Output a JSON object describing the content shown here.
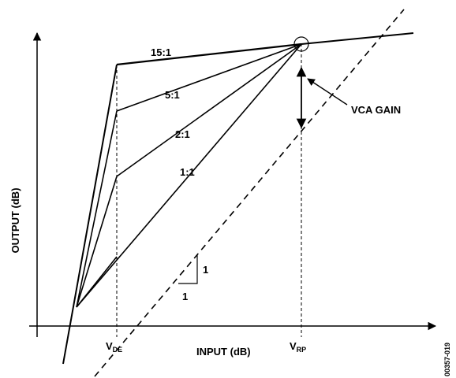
{
  "axes": {
    "x_label": "INPUT (dB)",
    "y_label": "OUTPUT (dB)"
  },
  "ratios": {
    "r15": "15:1",
    "r5": "5:1",
    "r2": "2:1",
    "r1": "1:1"
  },
  "markers": {
    "vde_main": "V",
    "vde_sub": "DE",
    "vrp_main": "V",
    "vrp_sub": "RP"
  },
  "annotations": {
    "vca_gain": "VCA GAIN",
    "slope_rise": "1",
    "slope_run": "1"
  },
  "figure_id": "00357-019"
}
